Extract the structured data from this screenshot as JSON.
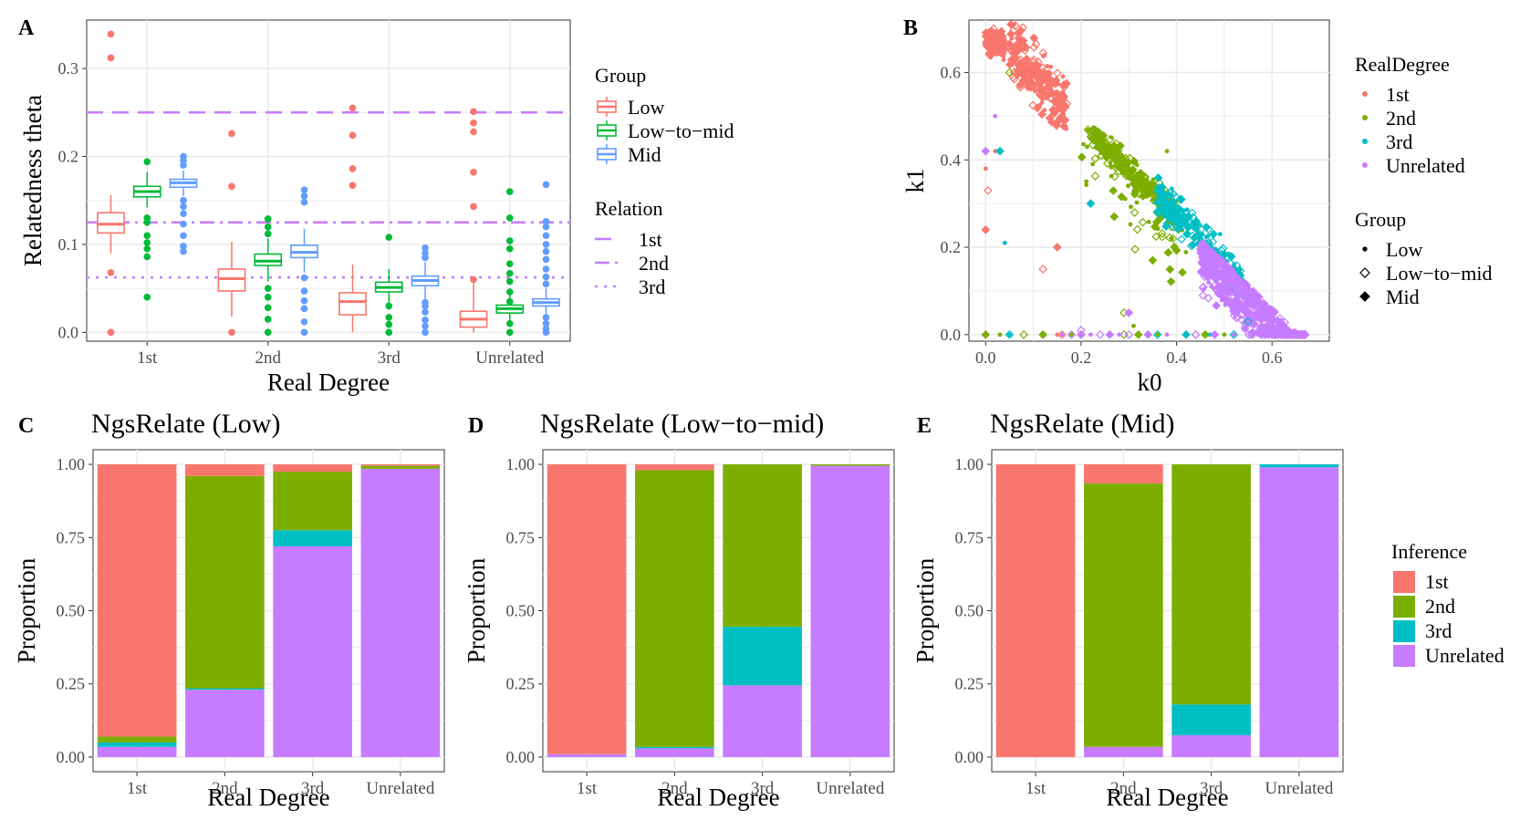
{
  "colors": {
    "first": "#F8766D",
    "second": "#7CAE00",
    "third": "#00BFC4",
    "unrelated": "#C77CFF",
    "low": "#F8766D",
    "lowmid": "#00BA38",
    "mid": "#619CFF",
    "refline": "#C77CFF",
    "panel_bg": "#FFFFFF",
    "grid": "#EBEBEB",
    "axis_text": "#4D4D4D"
  },
  "chart_data": [
    {
      "panel_label": "A",
      "type": "box",
      "title": "",
      "xlabel": "Real Degree",
      "ylabel": "Relatedness theta",
      "categories": [
        "1st",
        "2nd",
        "3rd",
        "Unrelated"
      ],
      "ylim": [
        -0.01,
        0.355
      ],
      "yticks": [
        0.0,
        0.1,
        0.2,
        0.3
      ],
      "ytick_labels": [
        "0.0",
        "0.1",
        "0.2",
        "0.3"
      ],
      "grid": true,
      "legend_position": "right",
      "group_legend_title": "Group",
      "groups": [
        {
          "name": "Low",
          "color_key": "low",
          "boxes": [
            {
              "q1": 0.113,
              "median": 0.123,
              "q3": 0.136,
              "lo": 0.09,
              "hi": 0.156,
              "outliers": [
                0.339,
                0.312,
                0.068,
                0.0
              ]
            },
            {
              "q1": 0.047,
              "median": 0.061,
              "q3": 0.072,
              "lo": 0.018,
              "hi": 0.103,
              "outliers": [
                0.226,
                0.166,
                0.0
              ]
            },
            {
              "q1": 0.02,
              "median": 0.035,
              "q3": 0.045,
              "lo": 0.0,
              "hi": 0.077,
              "outliers": [
                0.255,
                0.224,
                0.186,
                0.167
              ]
            },
            {
              "q1": 0.006,
              "median": 0.015,
              "q3": 0.024,
              "lo": 0.0,
              "hi": 0.06,
              "outliers": [
                0.251,
                0.238,
                0.228,
                0.182,
                0.143,
                0.06
              ]
            }
          ]
        },
        {
          "name": "Low−to−mid",
          "color_key": "lowmid",
          "boxes": [
            {
              "q1": 0.154,
              "median": 0.16,
              "q3": 0.166,
              "lo": 0.142,
              "hi": 0.182,
              "outliers": [
                0.194,
                0.13,
                0.125,
                0.11,
                0.102,
                0.095,
                0.086,
                0.04
              ]
            },
            {
              "q1": 0.076,
              "median": 0.081,
              "q3": 0.089,
              "lo": 0.058,
              "hi": 0.107,
              "outliers": [
                0.129,
                0.12,
                0.112,
                0.05,
                0.04,
                0.028,
                0.015,
                0.0
              ]
            },
            {
              "q1": 0.046,
              "median": 0.051,
              "q3": 0.057,
              "lo": 0.034,
              "hi": 0.072,
              "outliers": [
                0.108,
                0.03,
                0.017,
                0.009,
                0.0
              ]
            },
            {
              "q1": 0.022,
              "median": 0.027,
              "q3": 0.031,
              "lo": 0.014,
              "hi": 0.043,
              "outliers": [
                0.16,
                0.13,
                0.104,
                0.095,
                0.078,
                0.067,
                0.058,
                0.046,
                0.035,
                0.01,
                0.0
              ]
            }
          ]
        },
        {
          "name": "Mid",
          "color_key": "mid",
          "boxes": [
            {
              "q1": 0.165,
              "median": 0.17,
              "q3": 0.174,
              "lo": 0.155,
              "hi": 0.184,
              "outliers": [
                0.2,
                0.195,
                0.19,
                0.15,
                0.143,
                0.135,
                0.123,
                0.11,
                0.098,
                0.092
              ]
            },
            {
              "q1": 0.085,
              "median": 0.091,
              "q3": 0.099,
              "lo": 0.068,
              "hi": 0.118,
              "outliers": [
                0.162,
                0.155,
                0.148,
                0.062,
                0.047,
                0.036,
                0.027,
                0.012,
                0.0
              ]
            },
            {
              "q1": 0.053,
              "median": 0.059,
              "q3": 0.064,
              "lo": 0.038,
              "hi": 0.08,
              "outliers": [
                0.096,
                0.09,
                0.085,
                0.034,
                0.03,
                0.023,
                0.014,
                0.007,
                0.0
              ]
            },
            {
              "q1": 0.03,
              "median": 0.034,
              "q3": 0.038,
              "lo": 0.021,
              "hi": 0.05,
              "outliers": [
                0.168,
                0.126,
                0.12,
                0.11,
                0.1,
                0.092,
                0.083,
                0.072,
                0.063,
                0.055,
                0.017,
                0.01,
                0.004,
                0.0
              ]
            }
          ]
        }
      ],
      "relation_legend_title": "Relation",
      "relation_lines": [
        {
          "name": "1st",
          "y": 0.25,
          "style": "dashed"
        },
        {
          "name": "2nd",
          "y": 0.125,
          "style": "dotdash"
        },
        {
          "name": "3rd",
          "y": 0.0625,
          "style": "dotted"
        }
      ]
    },
    {
      "panel_label": "B",
      "type": "scatter",
      "title": "",
      "xlabel": "k0",
      "ylabel": "k1",
      "xlim": [
        -0.035,
        0.72
      ],
      "ylim": [
        -0.015,
        0.72
      ],
      "xticks": [
        0.0,
        0.2,
        0.4,
        0.6
      ],
      "xtick_labels": [
        "0.0",
        "0.2",
        "0.4",
        "0.6"
      ],
      "yticks": [
        0.0,
        0.2,
        0.4,
        0.6
      ],
      "ytick_labels": [
        "0.0",
        "0.2",
        "0.4",
        "0.6"
      ],
      "grid": true,
      "legend_position": "right",
      "color_legend_title": "RealDegree",
      "color_series": [
        {
          "name": "1st",
          "color_key": "first"
        },
        {
          "name": "2nd",
          "color_key": "second"
        },
        {
          "name": "3rd",
          "color_key": "third"
        },
        {
          "name": "Unrelated",
          "color_key": "unrelated"
        }
      ],
      "shape_legend_title": "Group",
      "shape_series": [
        {
          "name": "Low",
          "shape": "dot"
        },
        {
          "name": "Low−to−mid",
          "shape": "open-diamond"
        },
        {
          "name": "Mid",
          "shape": "filled-diamond"
        }
      ],
      "clusters": [
        {
          "series": "1st",
          "k0_range": [
            0.0,
            0.04
          ],
          "k1_center_line": true,
          "count": 180,
          "spread": 0.012
        },
        {
          "series": "1st",
          "k0_range": [
            0.05,
            0.17
          ],
          "k1_center_line": true,
          "count": 220,
          "spread": 0.035
        },
        {
          "series": "2nd",
          "k0_range": [
            0.22,
            0.4
          ],
          "k1_center_line": true,
          "count": 260,
          "spread": 0.015
        },
        {
          "series": "2nd",
          "k0_range": [
            0.2,
            0.42
          ],
          "k1_center_line": true,
          "count": 70,
          "spread": 0.08
        },
        {
          "series": "3rd",
          "k0_range": [
            0.36,
            0.54
          ],
          "k1_center_line": true,
          "count": 240,
          "spread": 0.02
        },
        {
          "series": "Unrelated",
          "k0_range": [
            0.45,
            0.67
          ],
          "k1_center_line": true,
          "count": 600,
          "spread": 0.05
        }
      ],
      "extra_points": [
        {
          "series": "1st",
          "k0": 0.0,
          "k1": 0.38
        },
        {
          "series": "1st",
          "k0": 0.005,
          "k1": 0.33
        },
        {
          "series": "1st",
          "k0": 0.0,
          "k1": 0.24
        },
        {
          "series": "1st",
          "k0": 0.0,
          "k1": 0.0
        },
        {
          "series": "1st",
          "k0": 0.12,
          "k1": 0.15
        },
        {
          "series": "1st",
          "k0": 0.15,
          "k1": 0.2
        },
        {
          "series": "1st",
          "k0": 0.02,
          "k1": 0.42
        },
        {
          "series": "1st",
          "k0": 0.09,
          "k1": 0.6
        },
        {
          "series": "2nd",
          "k0": 0.0,
          "k1": 0.0
        },
        {
          "series": "2nd",
          "k0": 0.31,
          "k1": 0.02
        },
        {
          "series": "2nd",
          "k0": 0.29,
          "k1": 0.05
        },
        {
          "series": "2nd",
          "k0": 0.35,
          "k1": 0.17
        },
        {
          "series": "2nd",
          "k0": 0.38,
          "k1": 0.42
        },
        {
          "series": "2nd",
          "k0": 0.05,
          "k1": 0.6
        },
        {
          "series": "3rd",
          "k0": 0.03,
          "k1": 0.42
        },
        {
          "series": "3rd",
          "k0": 0.04,
          "k1": 0.21
        },
        {
          "series": "3rd",
          "k0": 0.05,
          "k1": 0.0
        },
        {
          "series": "3rd",
          "k0": 0.22,
          "k1": 0.3
        },
        {
          "series": "3rd",
          "k0": 0.4,
          "k1": 0.28
        },
        {
          "series": "3rd",
          "k0": 0.55,
          "k1": 0.03
        },
        {
          "series": "Unrelated",
          "k0": 0.0,
          "k1": 0.42
        },
        {
          "series": "Unrelated",
          "k0": 0.02,
          "k1": 0.5
        },
        {
          "series": "Unrelated",
          "k0": 0.2,
          "k1": 0.01
        },
        {
          "series": "Unrelated",
          "k0": 0.3,
          "k1": 0.05
        }
      ],
      "zero_row": [
        {
          "series": "1st",
          "k0_list": [
            0.15,
            0.16,
            0.2
          ]
        },
        {
          "series": "2nd",
          "k0_list": [
            0.03,
            0.08,
            0.12,
            0.18,
            0.29,
            0.32,
            0.36,
            0.44,
            0.46,
            0.5
          ]
        },
        {
          "series": "3rd",
          "k0_list": [
            0.05,
            0.36,
            0.42,
            0.47,
            0.52
          ]
        },
        {
          "series": "Unrelated",
          "k0_list": [
            0.16,
            0.18,
            0.2,
            0.22,
            0.24,
            0.26,
            0.28,
            0.3,
            0.34,
            0.38,
            0.44,
            0.48,
            0.52,
            0.56,
            0.6,
            0.64
          ]
        }
      ]
    },
    {
      "panel_label": "C",
      "type": "bar",
      "stacked": true,
      "title": "NgsRelate (Low)",
      "xlabel": "Real Degree",
      "ylabel": "Proportion",
      "categories": [
        "1st",
        "2nd",
        "3rd",
        "Unrelated"
      ],
      "ylim": [
        -0.05,
        1.05
      ],
      "yticks": [
        0.0,
        0.25,
        0.5,
        0.75,
        1.0
      ],
      "ytick_labels": [
        "0.00",
        "0.25",
        "0.50",
        "0.75",
        "1.00"
      ],
      "series": [
        {
          "name": "Unrelated",
          "values": [
            0.035,
            0.23,
            0.72,
            0.985
          ]
        },
        {
          "name": "3rd",
          "values": [
            0.015,
            0.005,
            0.055,
            0.0
          ]
        },
        {
          "name": "2nd",
          "values": [
            0.02,
            0.725,
            0.2,
            0.01
          ]
        },
        {
          "name": "1st",
          "values": [
            0.93,
            0.04,
            0.025,
            0.005
          ]
        }
      ]
    },
    {
      "panel_label": "D",
      "type": "bar",
      "stacked": true,
      "title": "NgsRelate (Low−to−mid)",
      "xlabel": "Real Degree",
      "ylabel": "Proportion",
      "categories": [
        "1st",
        "2nd",
        "3rd",
        "Unrelated"
      ],
      "ylim": [
        -0.05,
        1.05
      ],
      "yticks": [
        0.0,
        0.25,
        0.5,
        0.75,
        1.0
      ],
      "ytick_labels": [
        "0.00",
        "0.25",
        "0.50",
        "0.75",
        "1.00"
      ],
      "series": [
        {
          "name": "Unrelated",
          "values": [
            0.01,
            0.03,
            0.245,
            0.995
          ]
        },
        {
          "name": "3rd",
          "values": [
            0.0,
            0.005,
            0.2,
            0.0
          ]
        },
        {
          "name": "2nd",
          "values": [
            0.0,
            0.945,
            0.555,
            0.005
          ]
        },
        {
          "name": "1st",
          "values": [
            0.99,
            0.02,
            0.0,
            0.0
          ]
        }
      ]
    },
    {
      "panel_label": "E",
      "type": "bar",
      "stacked": true,
      "title": "NgsRelate (Mid)",
      "xlabel": "Real Degree",
      "ylabel": "Proportion",
      "categories": [
        "1st",
        "2nd",
        "3rd",
        "Unrelated"
      ],
      "ylim": [
        -0.05,
        1.05
      ],
      "yticks": [
        0.0,
        0.25,
        0.5,
        0.75,
        1.0
      ],
      "ytick_labels": [
        "0.00",
        "0.25",
        "0.50",
        "0.75",
        "1.00"
      ],
      "legend_title": "Inference",
      "legend_position": "right",
      "series": [
        {
          "name": "Unrelated",
          "values": [
            0.0,
            0.035,
            0.075,
            0.99
          ]
        },
        {
          "name": "3rd",
          "values": [
            0.0,
            0.0,
            0.105,
            0.01
          ]
        },
        {
          "name": "2nd",
          "values": [
            0.0,
            0.9,
            0.82,
            0.0
          ]
        },
        {
          "name": "1st",
          "values": [
            1.0,
            0.065,
            0.0,
            0.0
          ]
        }
      ]
    }
  ]
}
